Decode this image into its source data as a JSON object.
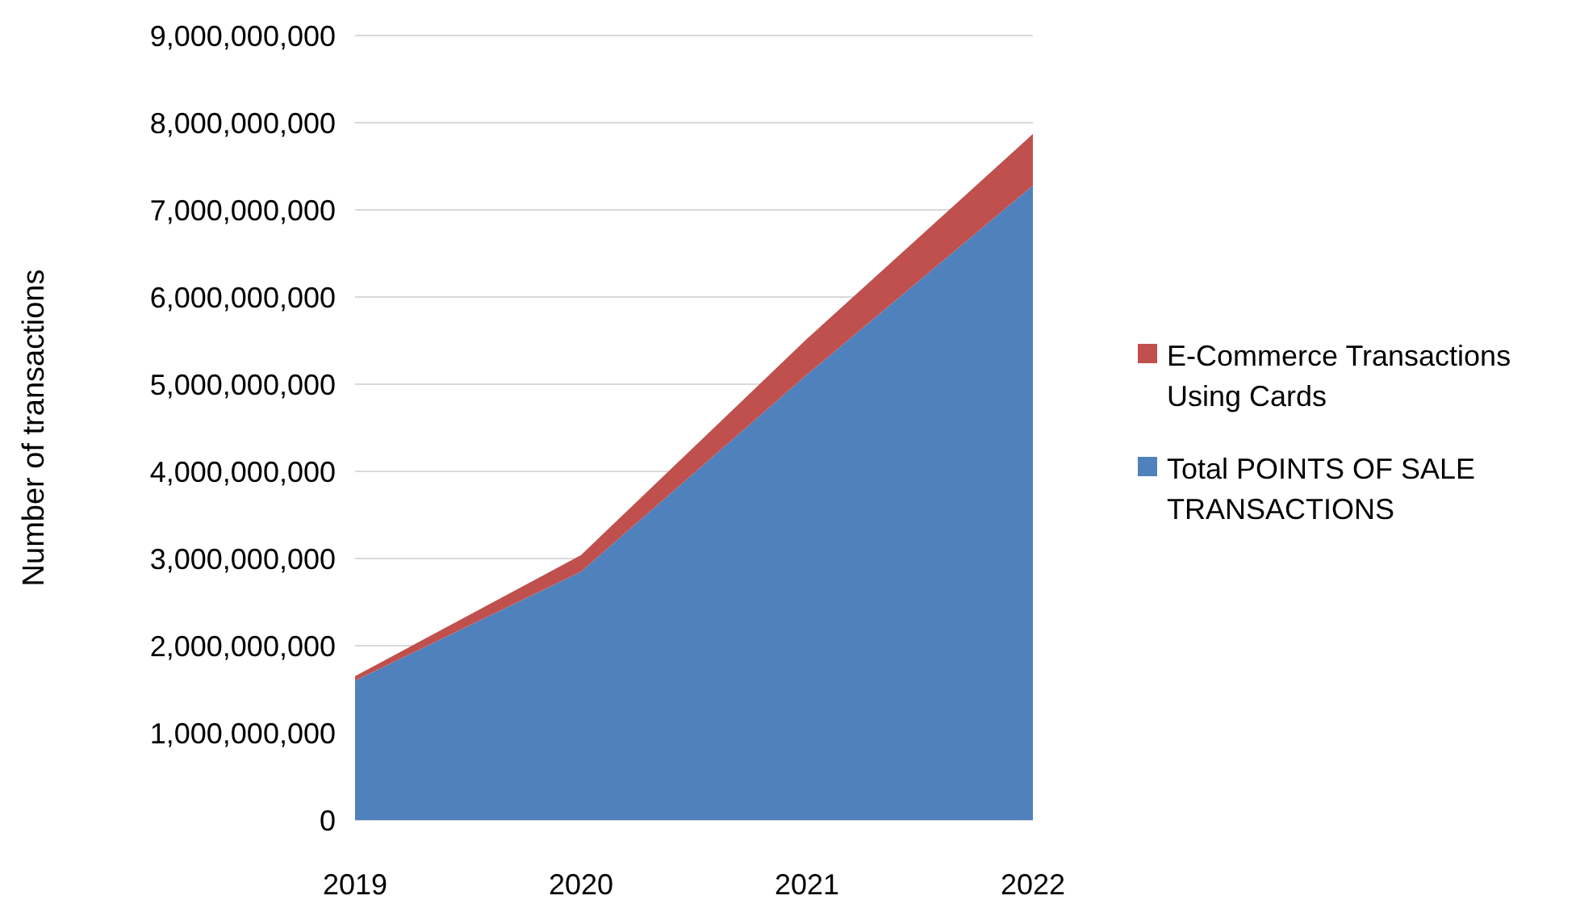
{
  "chart_data": {
    "type": "area",
    "stacked": true,
    "ylabel": "Number of transactions",
    "categories": [
      "2019",
      "2020",
      "2021",
      "2022"
    ],
    "series": [
      {
        "name": "Total POINTS OF SALE TRANSACTIONS",
        "color": "#4f81bd",
        "values": [
          1600000000,
          2850000000,
          5110000000,
          7280000000
        ]
      },
      {
        "name": "E-Commerce Transactions Using Cards",
        "color": "#c0504d",
        "values": [
          50000000,
          190000000,
          410000000,
          590000000
        ]
      }
    ],
    "ylim": [
      0,
      9000000000
    ],
    "yticks": [
      {
        "value": 0,
        "label": "0"
      },
      {
        "value": 1000000000,
        "label": "1,000,000,000"
      },
      {
        "value": 2000000000,
        "label": "2,000,000,000"
      },
      {
        "value": 3000000000,
        "label": "3,000,000,000"
      },
      {
        "value": 4000000000,
        "label": "4,000,000,000"
      },
      {
        "value": 5000000000,
        "label": "5,000,000,000"
      },
      {
        "value": 6000000000,
        "label": "6,000,000,000"
      },
      {
        "value": 7000000000,
        "label": "7,000,000,000"
      },
      {
        "value": 8000000000,
        "label": "8,000,000,000"
      },
      {
        "value": 9000000000,
        "label": "9,000,000,000"
      }
    ],
    "grid": "y",
    "legend": "right"
  }
}
